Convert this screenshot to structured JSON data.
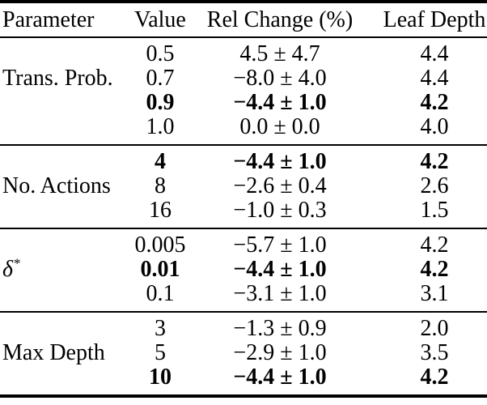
{
  "table": {
    "columns": [
      {
        "label": "Parameter"
      },
      {
        "label": "Value"
      },
      {
        "label": "Rel Change (%)"
      },
      {
        "label": "Leaf Depth"
      }
    ],
    "groups": [
      {
        "parameter": {
          "text": "Trans. Prob."
        },
        "label_row_index": 1,
        "rows": [
          {
            "value": "0.5",
            "rel_change": "4.5 ± 4.7",
            "leaf_depth": "4.4",
            "bold": false
          },
          {
            "value": "0.7",
            "rel_change": "−8.0 ± 4.0",
            "leaf_depth": "4.4",
            "bold": false
          },
          {
            "value": "0.9",
            "rel_change": "−4.4 ± 1.0",
            "leaf_depth": "4.2",
            "bold": true
          },
          {
            "value": "1.0",
            "rel_change": "0.0 ± 0.0",
            "leaf_depth": "4.0",
            "bold": false
          }
        ]
      },
      {
        "parameter": {
          "text": "No. Actions"
        },
        "label_row_index": 1,
        "rows": [
          {
            "value": "4",
            "rel_change": "−4.4 ± 1.0",
            "leaf_depth": "4.2",
            "bold": true
          },
          {
            "value": "8",
            "rel_change": "−2.6 ± 0.4",
            "leaf_depth": "2.6",
            "bold": false
          },
          {
            "value": "16",
            "rel_change": "−1.0 ± 0.3",
            "leaf_depth": "1.5",
            "bold": false
          }
        ]
      },
      {
        "parameter": {
          "text": "δ",
          "sup": "*",
          "italic": true
        },
        "label_row_index": 1,
        "rows": [
          {
            "value": "0.005",
            "rel_change": "−5.7 ± 1.0",
            "leaf_depth": "4.2",
            "bold": false
          },
          {
            "value": "0.01",
            "rel_change": "−4.4 ± 1.0",
            "leaf_depth": "4.2",
            "bold": true
          },
          {
            "value": "0.1",
            "rel_change": "−3.1 ± 1.0",
            "leaf_depth": "3.1",
            "bold": false
          }
        ]
      },
      {
        "parameter": {
          "text": "Max Depth"
        },
        "label_row_index": 1,
        "rows": [
          {
            "value": "3",
            "rel_change": "−1.3 ± 0.9",
            "leaf_depth": "2.0",
            "bold": false
          },
          {
            "value": "5",
            "rel_change": "−2.9 ± 1.0",
            "leaf_depth": "3.5",
            "bold": false
          },
          {
            "value": "10",
            "rel_change": "−4.4 ± 1.0",
            "leaf_depth": "4.2",
            "bold": true
          }
        ]
      }
    ],
    "colors": {
      "text": "#000000",
      "background": "#ffffff",
      "rule": "#000000"
    }
  }
}
